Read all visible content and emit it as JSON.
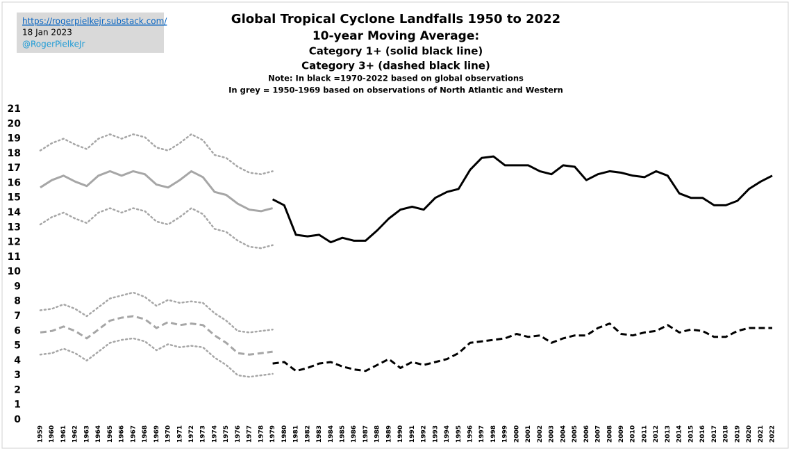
{
  "source": {
    "url": "https://rogerpielkejr.substack.com/",
    "date": "18 Jan 2023",
    "handle": "@RogerPielkeJr"
  },
  "chart_data": {
    "type": "line",
    "title": "Global Tropical Cyclone Landfalls 1950 to 2022",
    "subtitle_lines": [
      "10-year Moving Average:",
      "Category 1+ (solid black line)",
      "Category 3+ (dashed black line)"
    ],
    "notes": [
      "Note: In black =1970-2022 based on global observations",
      "In grey = 1950-1969 based on observations of North Atlantic and Western"
    ],
    "categories": [
      "1959",
      "1960",
      "1961",
      "1962",
      "1963",
      "1964",
      "1965",
      "1966",
      "1967",
      "1968",
      "1969",
      "1970",
      "1971",
      "1972",
      "1973",
      "1974",
      "1975",
      "1976",
      "1977",
      "1978",
      "1979",
      "1980",
      "1981",
      "1982",
      "1983",
      "1984",
      "1985",
      "1986",
      "1987",
      "1988",
      "1989",
      "1990",
      "1991",
      "1992",
      "1993",
      "1994",
      "1995",
      "1996",
      "1997",
      "1998",
      "1999",
      "2000",
      "2001",
      "2002",
      "2003",
      "2004",
      "2005",
      "2006",
      "2007",
      "2008",
      "2009",
      "2010",
      "2011",
      "2012",
      "2013",
      "2014",
      "2015",
      "2016",
      "2017",
      "2018",
      "2019",
      "2020",
      "2021",
      "2022"
    ],
    "ylim": [
      0,
      21
    ],
    "yticks": [
      0,
      1,
      2,
      3,
      4,
      5,
      6,
      7,
      8,
      9,
      10,
      11,
      12,
      13,
      14,
      15,
      16,
      17,
      18,
      19,
      20,
      21
    ],
    "grid": false,
    "series": [
      {
        "color": "#a6a6a6",
        "style": "dotted",
        "values": [
          18.2,
          18.7,
          19.0,
          18.6,
          18.3,
          19.0,
          19.3,
          19.0,
          19.3,
          19.1,
          18.4,
          18.2,
          18.7,
          19.3,
          18.9,
          17.9,
          17.7,
          17.1,
          16.7,
          16.6,
          16.8,
          null,
          null,
          null,
          null,
          null,
          null,
          null,
          null,
          null,
          null,
          null,
          null,
          null,
          null,
          null,
          null,
          null,
          null,
          null,
          null,
          null,
          null,
          null,
          null,
          null,
          null,
          null,
          null,
          null,
          null,
          null,
          null,
          null,
          null,
          null,
          null,
          null,
          null,
          null,
          null,
          null,
          null,
          null
        ]
      },
      {
        "color": "#a6a6a6",
        "style": "solid",
        "values": [
          15.7,
          16.2,
          16.5,
          16.1,
          15.8,
          16.5,
          16.8,
          16.5,
          16.8,
          16.6,
          15.9,
          15.7,
          16.2,
          16.8,
          16.4,
          15.4,
          15.2,
          14.6,
          14.2,
          14.1,
          14.3,
          null,
          null,
          null,
          null,
          null,
          null,
          null,
          null,
          null,
          null,
          null,
          null,
          null,
          null,
          null,
          null,
          null,
          null,
          null,
          null,
          null,
          null,
          null,
          null,
          null,
          null,
          null,
          null,
          null,
          null,
          null,
          null,
          null,
          null,
          null,
          null,
          null,
          null,
          null,
          null,
          null,
          null,
          null
        ]
      },
      {
        "color": "#a6a6a6",
        "style": "dotted",
        "values": [
          13.2,
          13.7,
          14.0,
          13.6,
          13.3,
          14.0,
          14.3,
          14.0,
          14.3,
          14.1,
          13.4,
          13.2,
          13.7,
          14.3,
          13.9,
          12.9,
          12.7,
          12.1,
          11.7,
          11.6,
          11.8,
          null,
          null,
          null,
          null,
          null,
          null,
          null,
          null,
          null,
          null,
          null,
          null,
          null,
          null,
          null,
          null,
          null,
          null,
          null,
          null,
          null,
          null,
          null,
          null,
          null,
          null,
          null,
          null,
          null,
          null,
          null,
          null,
          null,
          null,
          null,
          null,
          null,
          null,
          null,
          null,
          null,
          null,
          null
        ]
      },
      {
        "color": "#a6a6a6",
        "style": "dotted",
        "values": [
          7.4,
          7.5,
          7.8,
          7.5,
          7.0,
          7.6,
          8.2,
          8.4,
          8.6,
          8.3,
          7.7,
          8.1,
          7.9,
          8.0,
          7.9,
          7.2,
          6.7,
          6.0,
          5.9,
          6.0,
          6.1,
          null,
          null,
          null,
          null,
          null,
          null,
          null,
          null,
          null,
          null,
          null,
          null,
          null,
          null,
          null,
          null,
          null,
          null,
          null,
          null,
          null,
          null,
          null,
          null,
          null,
          null,
          null,
          null,
          null,
          null,
          null,
          null,
          null,
          null,
          null,
          null,
          null,
          null,
          null,
          null,
          null,
          null,
          null
        ]
      },
      {
        "color": "#a6a6a6",
        "style": "dashed",
        "values": [
          5.9,
          6.0,
          6.3,
          6.0,
          5.5,
          6.1,
          6.7,
          6.9,
          7.0,
          6.8,
          6.2,
          6.6,
          6.4,
          6.5,
          6.4,
          5.7,
          5.2,
          4.5,
          4.4,
          4.5,
          4.6,
          null,
          null,
          null,
          null,
          null,
          null,
          null,
          null,
          null,
          null,
          null,
          null,
          null,
          null,
          null,
          null,
          null,
          null,
          null,
          null,
          null,
          null,
          null,
          null,
          null,
          null,
          null,
          null,
          null,
          null,
          null,
          null,
          null,
          null,
          null,
          null,
          null,
          null,
          null,
          null,
          null,
          null,
          null
        ]
      },
      {
        "color": "#a6a6a6",
        "style": "dotted",
        "values": [
          4.4,
          4.5,
          4.8,
          4.5,
          4.0,
          4.6,
          5.2,
          5.4,
          5.5,
          5.3,
          4.7,
          5.1,
          4.9,
          5.0,
          4.9,
          4.2,
          3.7,
          3.0,
          2.9,
          3.0,
          3.1,
          null,
          null,
          null,
          null,
          null,
          null,
          null,
          null,
          null,
          null,
          null,
          null,
          null,
          null,
          null,
          null,
          null,
          null,
          null,
          null,
          null,
          null,
          null,
          null,
          null,
          null,
          null,
          null,
          null,
          null,
          null,
          null,
          null,
          null,
          null,
          null,
          null,
          null,
          null,
          null,
          null,
          null,
          null
        ]
      },
      {
        "color": "#000000",
        "style": "solid",
        "values": [
          null,
          null,
          null,
          null,
          null,
          null,
          null,
          null,
          null,
          null,
          null,
          null,
          null,
          null,
          null,
          null,
          null,
          null,
          null,
          null,
          14.9,
          14.5,
          12.5,
          12.4,
          12.5,
          12.0,
          12.3,
          12.1,
          12.1,
          12.8,
          13.6,
          14.2,
          14.4,
          14.2,
          15.0,
          15.4,
          15.6,
          16.9,
          17.7,
          17.8,
          17.2,
          17.2,
          17.2,
          16.8,
          16.6,
          17.2,
          17.1,
          16.2,
          16.6,
          16.8,
          16.7,
          16.5,
          16.4,
          16.8,
          16.5,
          15.3,
          15.0,
          15.0,
          14.5,
          14.5,
          14.8,
          15.6,
          16.1,
          16.5
        ]
      },
      {
        "color": "#000000",
        "style": "dashed",
        "values": [
          null,
          null,
          null,
          null,
          null,
          null,
          null,
          null,
          null,
          null,
          null,
          null,
          null,
          null,
          null,
          null,
          null,
          null,
          null,
          null,
          3.8,
          3.9,
          3.3,
          3.5,
          3.8,
          3.9,
          3.6,
          3.4,
          3.3,
          3.7,
          4.1,
          3.5,
          3.9,
          3.7,
          3.9,
          4.1,
          4.5,
          5.2,
          5.3,
          5.4,
          5.5,
          5.8,
          5.6,
          5.7,
          5.2,
          5.5,
          5.7,
          5.7,
          6.2,
          6.5,
          5.8,
          5.7,
          5.9,
          6.0,
          6.4,
          5.9,
          6.1,
          6.0,
          5.6,
          5.6,
          6.0,
          6.2,
          6.2,
          6.2
        ]
      }
    ]
  }
}
